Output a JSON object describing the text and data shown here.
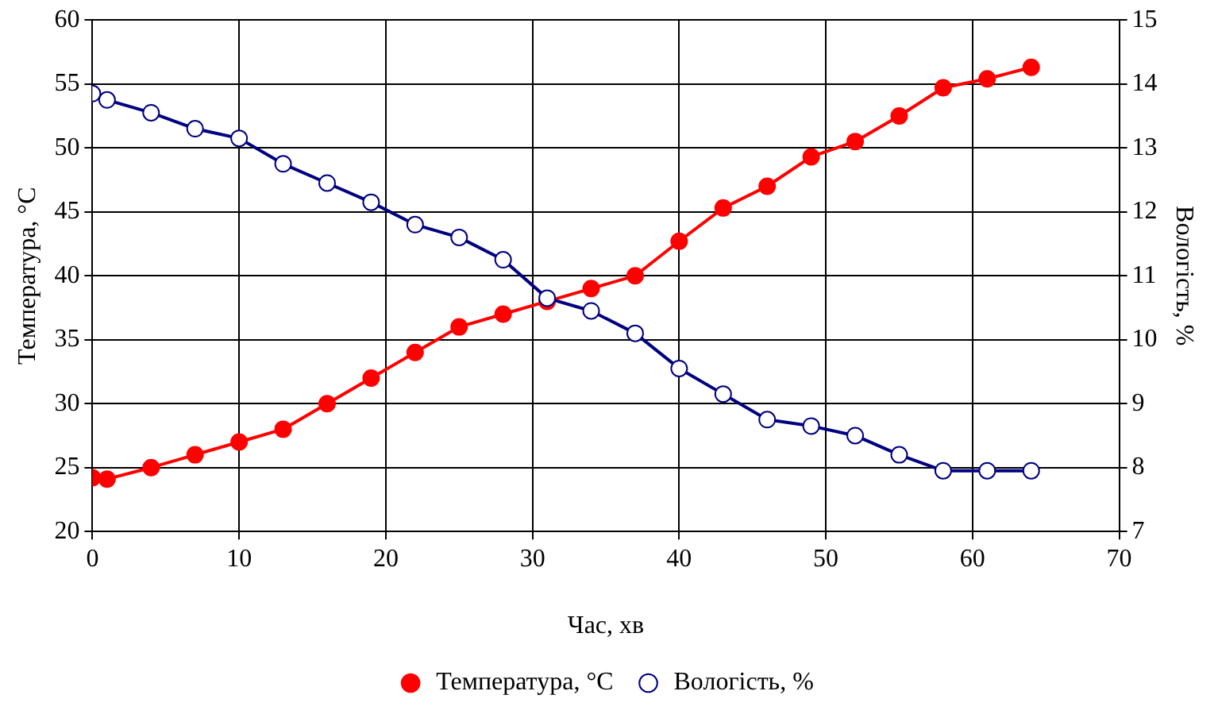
{
  "chart_data": {
    "type": "line",
    "xlabel": "Час, хв",
    "ylabel": "Температура, °C",
    "y2label": "Вологість, %",
    "x": [
      0,
      1,
      4,
      7,
      10,
      13,
      16,
      19,
      22,
      25,
      28,
      31,
      34,
      37,
      40,
      43,
      46,
      49,
      52,
      55,
      58,
      61,
      64
    ],
    "series": [
      {
        "name": "Температура, °C",
        "color": "#ff0000",
        "values": [
          24.2,
          24.1,
          25,
          26,
          27,
          28,
          30,
          32,
          34,
          36,
          37,
          38,
          39,
          40,
          42.7,
          45.3,
          47,
          49.3,
          50.5,
          52.5,
          54.7,
          55.4,
          56.3
        ]
      },
      {
        "name": "Вологість, %",
        "color": "#000080",
        "axis": "y2",
        "values": [
          13.85,
          13.75,
          13.55,
          13.3,
          13.15,
          12.75,
          12.45,
          12.15,
          11.8,
          11.6,
          11.25,
          10.65,
          10.45,
          10.1,
          9.55,
          9.15,
          8.75,
          8.65,
          8.5,
          8.2,
          7.95,
          7.95,
          7.95
        ]
      }
    ],
    "xlim": [
      0,
      70
    ],
    "xticks": [
      0,
      10,
      20,
      30,
      40,
      50,
      60,
      70
    ],
    "ylim": [
      20,
      60
    ],
    "yticks": [
      20,
      25,
      30,
      35,
      40,
      45,
      50,
      55,
      60
    ],
    "y2lim": [
      7,
      15
    ],
    "y2ticks": [
      7,
      8,
      9,
      10,
      11,
      12,
      13,
      14,
      15
    ],
    "grid": true,
    "legend": "bottom",
    "marker": "circle",
    "line_style": "solid"
  }
}
